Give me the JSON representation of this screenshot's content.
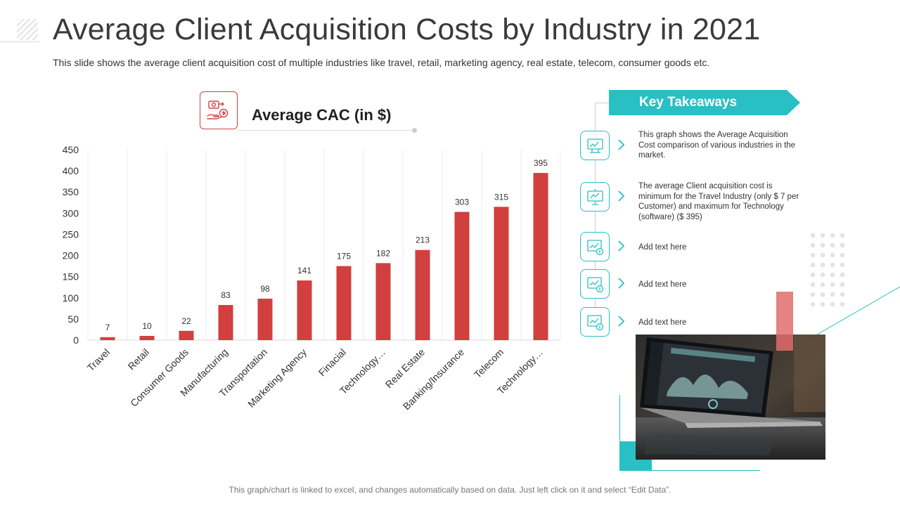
{
  "header": {
    "title": "Average Client Acquisition Costs by Industry in 2021",
    "subtitle": "This slide shows the average client acquisition cost of multiple industries like travel, retail, marketing agency, real estate, telecom, consumer goods etc."
  },
  "chart_header": {
    "title": "Average CAC (in $)"
  },
  "chart_data": {
    "type": "bar",
    "title": "Average CAC (in $)",
    "categories": [
      "Travel",
      "Retail",
      "Consumer Goods",
      "Manufacturing",
      "Transportation",
      "Marketing Agency",
      "Finacial",
      "Technology…",
      "Real Estate",
      "Banking/Insurance",
      "Telecom",
      "Technology…"
    ],
    "values": [
      7,
      10,
      22,
      83,
      98,
      141,
      175,
      182,
      213,
      303,
      315,
      395
    ],
    "yticks": [
      "0",
      "50",
      "100",
      "150",
      "200",
      "250",
      "300",
      "350",
      "400",
      "450"
    ],
    "ylim": [
      0,
      450
    ],
    "xlabel": "",
    "ylabel": "",
    "grid": "vertical",
    "bar_color": "#d13f3f"
  },
  "takeaways": {
    "heading": "Key Takeaways",
    "items": [
      {
        "text": "This graph shows the Average Acquisition Cost comparison of various industries in the market.",
        "icon": "growth-board-icon"
      },
      {
        "text": "The average Client acquisition cost is minimum for the Travel Industry (only $ 7 per Customer) and maximum for Technology (software) ($ 395)",
        "icon": "presentation-screen-icon"
      },
      {
        "text": "Add text here",
        "icon": "chart-dollar-icon"
      },
      {
        "text": "Add text here",
        "icon": "chart-dollar-icon"
      },
      {
        "text": "Add text here",
        "icon": "chart-dollar-icon"
      }
    ]
  },
  "footer": {
    "note": "This graph/chart is linked to excel, and changes automatically based on data. Just left click on it and select “Edit Data”."
  },
  "colors": {
    "accent": "#28c0c4",
    "bar": "#d13f3f",
    "icon_red": "#d04545"
  }
}
